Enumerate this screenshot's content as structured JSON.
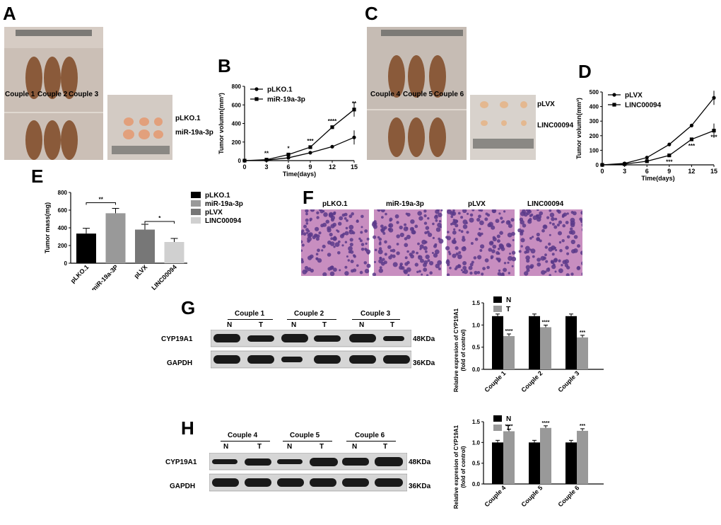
{
  "panels": {
    "A": "A",
    "B": "B",
    "C": "C",
    "D": "D",
    "E": "E",
    "F": "F",
    "G": "G",
    "H": "H"
  },
  "panelA": {
    "couples": [
      "Couple 1",
      "Couple 2",
      "Couple 3"
    ],
    "tumor_labels": [
      "pLKO.1",
      "miR-19a-3p"
    ]
  },
  "panelC": {
    "couples": [
      "Couple 4",
      "Couple 5",
      "Couple 6"
    ],
    "tumor_labels": [
      "pLVX",
      "LINC00094"
    ]
  },
  "panelF": {
    "labels": [
      "pLKO.1",
      "miR-19a-3p",
      "pLVX",
      "LINC00094"
    ]
  },
  "panelG": {
    "couples": [
      "Couple 1",
      "Couple 2",
      "Couple 3"
    ],
    "lanes": [
      "N",
      "T",
      "N",
      "T",
      "N",
      "T"
    ],
    "proteins": [
      "CYP19A1",
      "GAPDH"
    ],
    "sizes": [
      "48KDa",
      "36KDa"
    ]
  },
  "panelH": {
    "couples": [
      "Couple 4",
      "Couple 5",
      "Couple 6"
    ],
    "lanes": [
      "N",
      "T",
      "N",
      "T",
      "N",
      "T"
    ],
    "proteins": [
      "CYP19A1",
      "GAPDH"
    ],
    "sizes": [
      "48KDa",
      "36KDa"
    ]
  },
  "colors": {
    "black": "#000000",
    "grey": "#999999",
    "dark_grey": "#777777",
    "light_grey": "#d0d0d0",
    "he_pink": "#c88ec0",
    "he_purple": "#5a3a8a"
  },
  "chart_data": [
    {
      "id": "B",
      "type": "line",
      "xlabel": "Time(days)",
      "ylabel": "Tumor volumn(mm³)",
      "x": [
        0,
        3,
        6,
        9,
        12,
        15
      ],
      "xticks": [
        "0",
        "3",
        "6",
        "9",
        "12",
        "15"
      ],
      "yticks": [
        "0",
        "200",
        "400",
        "600",
        "800"
      ],
      "ylim": [
        0,
        800
      ],
      "series": [
        {
          "name": "pLKO.1",
          "values": [
            0,
            5,
            30,
            85,
            150,
            250
          ],
          "marker": "circle"
        },
        {
          "name": "miR-19a-3p",
          "values": [
            0,
            10,
            65,
            145,
            360,
            550
          ],
          "marker": "square"
        }
      ],
      "significance": [
        {
          "x": 3,
          "label": "**"
        },
        {
          "x": 6,
          "label": "*"
        },
        {
          "x": 9,
          "label": "***"
        },
        {
          "x": 12,
          "label": "****"
        },
        {
          "x": 15,
          "label": "**"
        }
      ],
      "legend": "top-left"
    },
    {
      "id": "D",
      "type": "line",
      "xlabel": "Time(days)",
      "ylabel": "Tumor volumn(mm³)",
      "x": [
        0,
        3,
        6,
        9,
        12,
        15
      ],
      "xticks": [
        "0",
        "3",
        "6",
        "9",
        "12",
        "15"
      ],
      "yticks": [
        "0",
        "100",
        "200",
        "300",
        "400",
        "500"
      ],
      "ylim": [
        0,
        500
      ],
      "series": [
        {
          "name": "pLVX",
          "values": [
            0,
            10,
            50,
            140,
            270,
            460
          ],
          "marker": "circle"
        },
        {
          "name": "LINC00094",
          "values": [
            0,
            5,
            25,
            65,
            175,
            235
          ],
          "marker": "square"
        }
      ],
      "significance": [
        {
          "x": 9,
          "label": "***"
        },
        {
          "x": 12,
          "label": "***"
        },
        {
          "x": 15,
          "label": "***"
        }
      ],
      "legend": "top-left"
    },
    {
      "id": "E",
      "type": "bar",
      "ylabel": "Tumor mass(mg)",
      "categories": [
        "pLKO.1",
        "miR-19a-3P",
        "pLVX",
        "LINC00094"
      ],
      "values": [
        335,
        565,
        380,
        240
      ],
      "errors": [
        60,
        55,
        60,
        40
      ],
      "yticks": [
        "0",
        "200",
        "400",
        "600",
        "800"
      ],
      "ylim": [
        0,
        800
      ],
      "legend_entries": [
        "pLKO.1",
        "miR-19a-3p",
        "pLVX",
        "LINC00094"
      ],
      "significance": [
        {
          "between": [
            0,
            1
          ],
          "label": "**"
        },
        {
          "between": [
            2,
            3
          ],
          "label": "*"
        }
      ],
      "legend": "right"
    },
    {
      "id": "G",
      "type": "bar",
      "ylabel": "Relative expresion of CYP19A1 (fold of control)",
      "categories": [
        "Couple 1",
        "Couple 2",
        "Couple 3"
      ],
      "series": [
        {
          "name": "N",
          "values": [
            1.2,
            1.2,
            1.2
          ]
        },
        {
          "name": "T",
          "values": [
            0.75,
            0.95,
            0.72
          ]
        }
      ],
      "yticks": [
        "0.0",
        "0.5",
        "1.0",
        "1.5"
      ],
      "ylim": [
        0,
        1.5
      ],
      "significance": [
        "****",
        "****",
        "***"
      ],
      "legend": "top-left"
    },
    {
      "id": "H",
      "type": "bar",
      "ylabel": "Relative expresion of CYP19A1 (fold of control)",
      "categories": [
        "Couple 4",
        "Couple 5",
        "Couple 6"
      ],
      "series": [
        {
          "name": "N",
          "values": [
            1.0,
            1.0,
            1.0
          ]
        },
        {
          "name": "T",
          "values": [
            1.27,
            1.35,
            1.28
          ]
        }
      ],
      "yticks": [
        "0.0",
        "0.5",
        "1.0",
        "1.5"
      ],
      "ylim": [
        0,
        1.5
      ],
      "significance": [
        "****",
        "****",
        "***"
      ],
      "legend": "top-left"
    }
  ]
}
